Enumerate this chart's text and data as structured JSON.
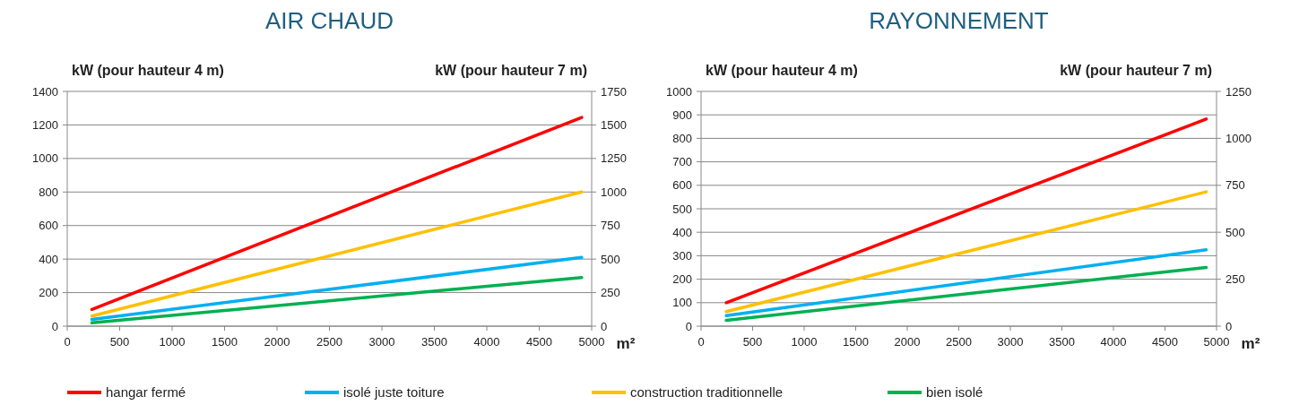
{
  "chart_data": [
    {
      "type": "line",
      "title": "AIR CHAUD",
      "xlabel": "m²",
      "ylabel": "kW (pour hauteur 4 m)",
      "y2label": "kW (pour hauteur 7 m)",
      "x": [
        235,
        4905
      ],
      "xlim": [
        0,
        5000
      ],
      "xticks": [
        0,
        500,
        1000,
        1500,
        2000,
        2500,
        3000,
        3500,
        4000,
        4500,
        5000
      ],
      "ylim": [
        0,
        1400
      ],
      "yticks": [
        0,
        200,
        400,
        600,
        800,
        1000,
        1200,
        1400
      ],
      "y2lim": [
        0,
        1750
      ],
      "y2ticks": [
        0,
        250,
        500,
        750,
        1000,
        1250,
        1500,
        1750
      ],
      "grid": "y",
      "legend": "bottom",
      "marker": "none",
      "series": [
        {
          "name": "hangar fermé",
          "color": "#ff0000",
          "values": [
            100,
            1245
          ]
        },
        {
          "name": "isolé juste toiture",
          "color": "#00b0f0",
          "values": [
            40,
            410
          ]
        },
        {
          "name": "construction traditionnelle",
          "color": "#ffc000",
          "values": [
            60,
            800
          ]
        },
        {
          "name": "bien isolé",
          "color": "#00b050",
          "values": [
            20,
            290
          ]
        }
      ]
    },
    {
      "type": "line",
      "title": "RAYONNEMENT",
      "xlabel": "m²",
      "ylabel": "kW (pour hauteur 4 m)",
      "y2label": "kW (pour hauteur 7 m)",
      "x": [
        245,
        4900
      ],
      "xlim": [
        0,
        5000
      ],
      "xticks": [
        0,
        500,
        1000,
        1500,
        2000,
        2500,
        3000,
        3500,
        4000,
        4500,
        5000
      ],
      "ylim": [
        0,
        1000
      ],
      "yticks": [
        0,
        100,
        200,
        300,
        400,
        500,
        600,
        700,
        800,
        900,
        1000
      ],
      "y2lim": [
        0,
        1250
      ],
      "y2ticks": [
        0,
        250,
        500,
        750,
        1000,
        1250
      ],
      "grid": "y",
      "marker": "none",
      "series": [
        {
          "color": "#ff0000",
          "values": [
            100,
            882
          ]
        },
        {
          "color": "#00b0f0",
          "values": [
            45,
            325
          ]
        },
        {
          "color": "#ffc000",
          "values": [
            62,
            572
          ]
        },
        {
          "color": "#00b050",
          "values": [
            25,
            250
          ]
        }
      ]
    }
  ]
}
